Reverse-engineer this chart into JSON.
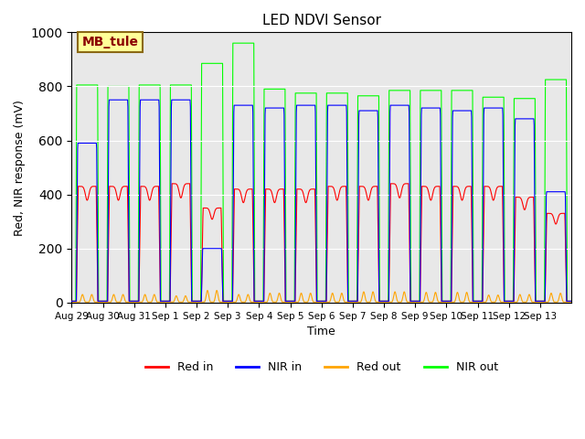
{
  "title": "LED NDVI Sensor",
  "xlabel": "Time",
  "ylabel": "Red, NIR response (mV)",
  "annotation_text": "MB_tule",
  "annotation_color": "#8B0000",
  "annotation_bg": "#FFFF99",
  "annotation_border": "#8B6914",
  "ylim": [
    0,
    1000
  ],
  "background_color": "#E8E8E8",
  "line_colors": {
    "red_in": "#FF0000",
    "nir_in": "#0000FF",
    "red_out": "#FFA500",
    "nir_out": "#00FF00"
  },
  "legend_labels": [
    "Red in",
    "NIR in",
    "Red out",
    "NIR out"
  ],
  "xtick_labels": [
    "Aug 29",
    "Aug 30",
    "Aug 31",
    "Sep 1",
    "Sep 2",
    "Sep 3",
    "Sep 4",
    "Sep 5",
    "Sep 6",
    "Sep 7",
    "Sep 8",
    "Sep 9",
    "Sep 10",
    "Sep 11",
    "Sep 12",
    "Sep 13"
  ],
  "red_in_peaks": [
    430,
    430,
    430,
    440,
    350,
    420,
    420,
    420,
    430,
    430,
    440,
    430,
    430,
    430,
    390,
    330
  ],
  "nir_in_peaks": [
    590,
    750,
    750,
    750,
    200,
    730,
    720,
    730,
    730,
    710,
    730,
    720,
    710,
    720,
    680,
    410
  ],
  "red_out_peaks": [
    30,
    30,
    30,
    25,
    45,
    30,
    35,
    35,
    35,
    40,
    40,
    38,
    38,
    28,
    30,
    35
  ],
  "nir_out_peaks": [
    805,
    800,
    805,
    805,
    885,
    960,
    790,
    775,
    775,
    765,
    785,
    785,
    785,
    760,
    755,
    825
  ]
}
